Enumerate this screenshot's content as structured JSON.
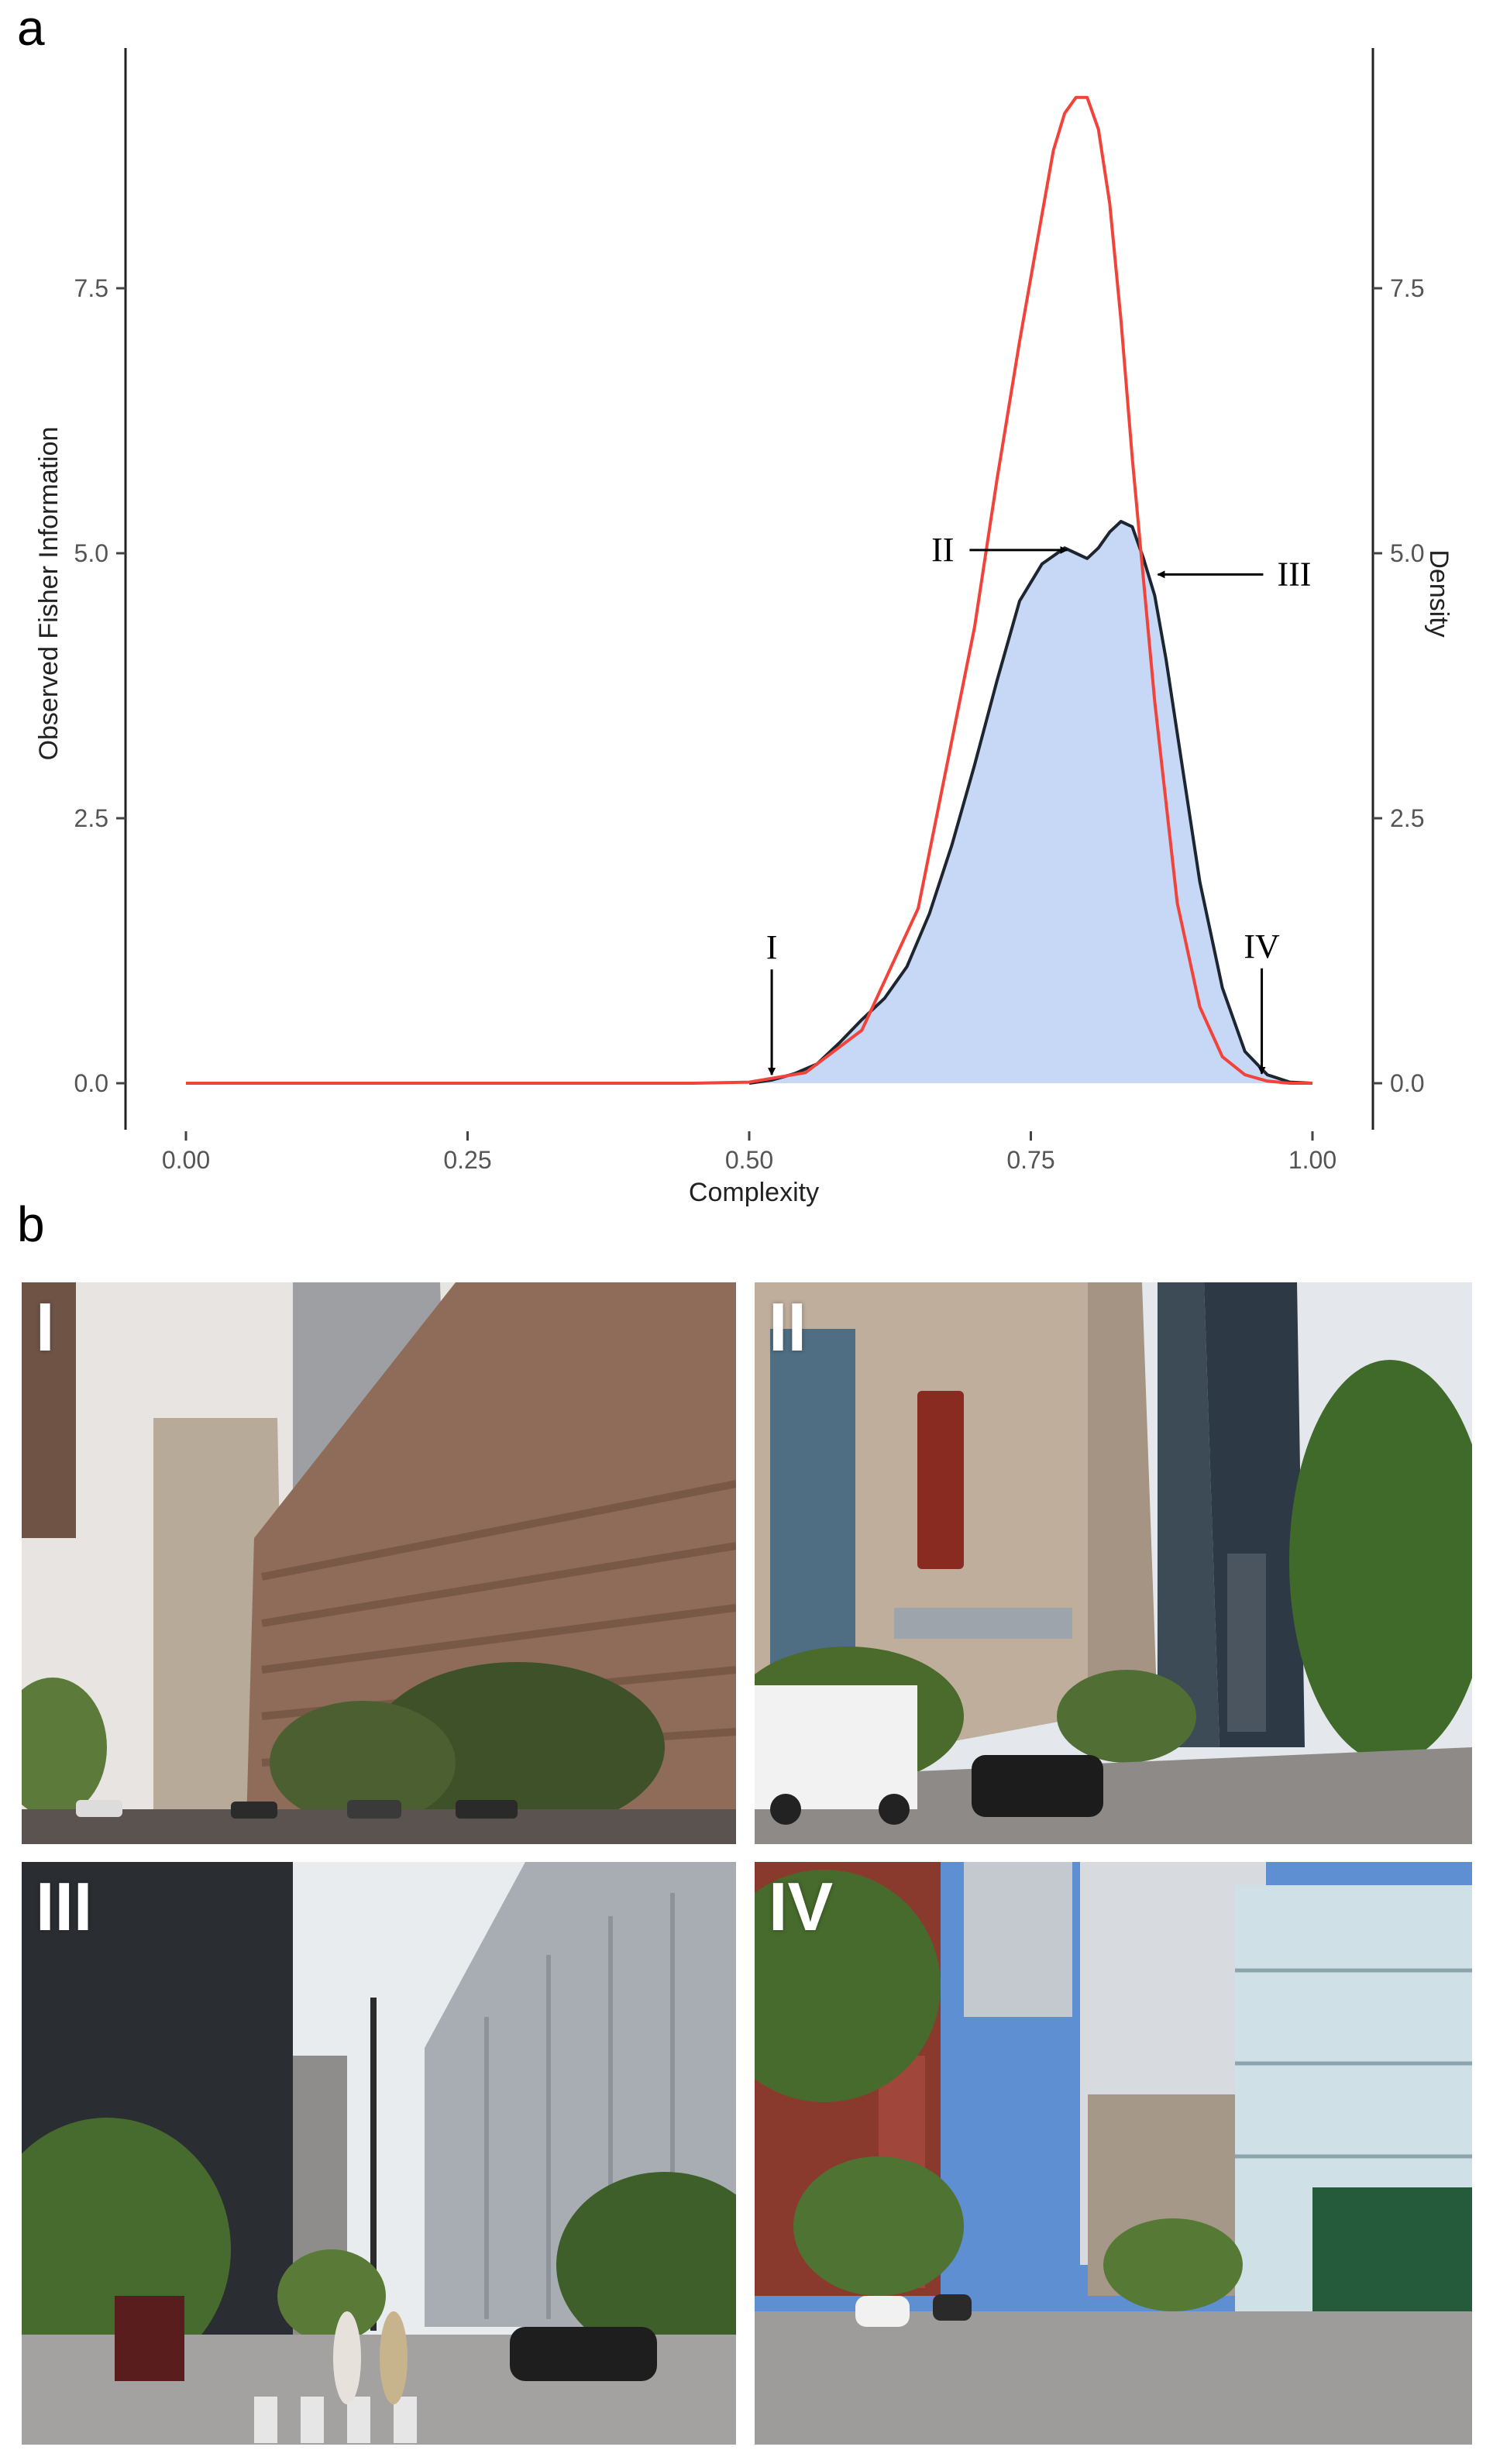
{
  "panels": {
    "a_label": "a",
    "b_label": "b"
  },
  "chart_data": {
    "type": "area",
    "xlabel": "Complexity",
    "ylabel_left": "Observed Fisher Information",
    "ylabel_right": "Density",
    "xlim": [
      0,
      1
    ],
    "ylim": [
      0,
      9.3
    ],
    "x_ticks": [
      0.0,
      0.25,
      0.5,
      0.75,
      1.0
    ],
    "x_tick_labels": [
      "0.00",
      "0.25",
      "0.50",
      "0.75",
      "1.00"
    ],
    "y_ticks": [
      0.0,
      2.5,
      5.0,
      7.5
    ],
    "y_tick_labels": [
      "0.0",
      "2.5",
      "5.0",
      "7.5"
    ],
    "y_tick_labels_right": [
      "0.0",
      "2.5",
      "5.0",
      "7.5"
    ],
    "grid": false,
    "colors": {
      "fisher_line": "#f2433a",
      "density_fill": "#c6d8f5",
      "density_line": "#1c2530"
    },
    "series": [
      {
        "x": [
          0.0,
          0.1,
          0.2,
          0.3,
          0.4,
          0.45,
          0.5,
          0.55,
          0.6,
          0.65,
          0.7,
          0.72,
          0.74,
          0.76,
          0.77,
          0.78,
          0.79,
          0.8,
          0.81,
          0.82,
          0.83,
          0.84,
          0.86,
          0.88,
          0.9,
          0.92,
          0.94,
          0.96,
          0.98,
          1.0
        ],
        "y": [
          0,
          0,
          0,
          0,
          0,
          0,
          0.01,
          0.1,
          0.5,
          1.65,
          4.3,
          5.7,
          7.0,
          8.2,
          8.8,
          9.15,
          9.3,
          9.3,
          9.0,
          8.3,
          7.2,
          5.9,
          3.6,
          1.7,
          0.72,
          0.25,
          0.08,
          0.02,
          0,
          0
        ]
      },
      {
        "x": [
          0.5,
          0.52,
          0.54,
          0.56,
          0.58,
          0.6,
          0.62,
          0.64,
          0.66,
          0.68,
          0.7,
          0.72,
          0.74,
          0.76,
          0.78,
          0.79,
          0.8,
          0.81,
          0.82,
          0.83,
          0.84,
          0.85,
          0.86,
          0.87,
          0.88,
          0.9,
          0.92,
          0.94,
          0.96,
          0.98,
          1.0
        ],
        "y": [
          0.0,
          0.03,
          0.09,
          0.18,
          0.38,
          0.6,
          0.8,
          1.1,
          1.6,
          2.25,
          3.0,
          3.8,
          4.55,
          4.9,
          5.05,
          5.0,
          4.95,
          5.05,
          5.2,
          5.3,
          5.25,
          4.95,
          4.6,
          4.0,
          3.3,
          1.9,
          0.9,
          0.3,
          0.08,
          0.01,
          0.0
        ]
      }
    ],
    "annotations": [
      {
        "label": "I",
        "x": 0.52,
        "y": 0.05
      },
      {
        "label": "II",
        "x": 0.785,
        "y": 5.03
      },
      {
        "label": "III",
        "x": 0.86,
        "y": 4.8
      },
      {
        "label": "IV",
        "x": 0.955,
        "y": 0.06
      }
    ]
  },
  "photos": [
    {
      "label": "I"
    },
    {
      "label": "II"
    },
    {
      "label": "III"
    },
    {
      "label": "IV"
    }
  ]
}
